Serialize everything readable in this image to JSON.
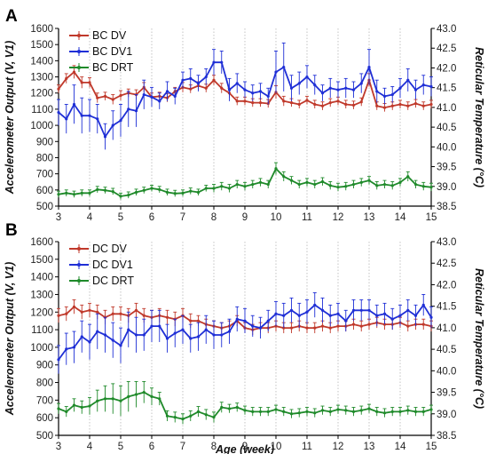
{
  "chart_data": [
    {
      "panel_label": "A",
      "type": "line",
      "xlabel": "",
      "ylabel": "Accelerometer Output (V, V1)",
      "y2label": "Reticular Temperature (°C)",
      "xlim": [
        3,
        15
      ],
      "ylim": [
        500,
        1600
      ],
      "y2lim": [
        38.5,
        43.0
      ],
      "xticks": [
        "3",
        "4",
        "5",
        "6",
        "7",
        "8",
        "9",
        "10",
        "11",
        "12",
        "13",
        "14",
        "15"
      ],
      "yticks": [
        "500",
        "600",
        "700",
        "800",
        "900",
        "1000",
        "1100",
        "1200",
        "1300",
        "1400",
        "1500",
        "1600"
      ],
      "y2ticks": [
        "38.5",
        "39.0",
        "39.5",
        "40.0",
        "40.5",
        "41.0",
        "41.5",
        "42.0",
        "42.5",
        "43.0"
      ],
      "grid": "vertical",
      "legend_position": "top-left",
      "series": [
        {
          "name": "BC DV",
          "axis": "left",
          "color": "#c0392b",
          "x": [
            3.0,
            3.25,
            3.5,
            3.75,
            4.0,
            4.25,
            4.5,
            4.75,
            5.0,
            5.25,
            5.5,
            5.75,
            6.0,
            6.25,
            6.5,
            6.75,
            7.0,
            7.25,
            7.5,
            7.75,
            8.0,
            8.25,
            8.5,
            8.75,
            9.0,
            9.25,
            9.5,
            9.75,
            10.0,
            10.25,
            10.5,
            10.75,
            11.0,
            11.25,
            11.5,
            11.75,
            12.0,
            12.25,
            12.5,
            12.75,
            13.0,
            13.25,
            13.5,
            13.75,
            14.0,
            14.25,
            14.5,
            14.75,
            15.0
          ],
          "y": [
            1225,
            1290,
            1330,
            1265,
            1265,
            1170,
            1180,
            1160,
            1185,
            1200,
            1190,
            1235,
            1175,
            1180,
            1170,
            1210,
            1235,
            1225,
            1245,
            1230,
            1280,
            1230,
            1200,
            1150,
            1150,
            1140,
            1140,
            1135,
            1205,
            1150,
            1140,
            1130,
            1155,
            1130,
            1120,
            1140,
            1150,
            1130,
            1125,
            1145,
            1280,
            1120,
            1110,
            1120,
            1130,
            1120,
            1135,
            1120,
            1130
          ],
          "err": [
            25,
            30,
            40,
            35,
            30,
            30,
            25,
            30,
            30,
            25,
            30,
            30,
            25,
            25,
            25,
            25,
            30,
            25,
            25,
            25,
            30,
            30,
            30,
            25,
            25,
            25,
            25,
            25,
            40,
            30,
            25,
            25,
            25,
            25,
            25,
            25,
            25,
            25,
            25,
            25,
            40,
            25,
            25,
            25,
            25,
            25,
            25,
            25,
            25
          ]
        },
        {
          "name": "BC DV1",
          "axis": "left",
          "color": "#1f2fd6",
          "x": [
            3.0,
            3.25,
            3.5,
            3.75,
            4.0,
            4.25,
            4.5,
            4.75,
            5.0,
            5.25,
            5.5,
            5.75,
            6.0,
            6.25,
            6.5,
            6.75,
            7.0,
            7.25,
            7.5,
            7.75,
            8.0,
            8.25,
            8.5,
            8.75,
            9.0,
            9.25,
            9.5,
            9.75,
            10.0,
            10.25,
            10.5,
            10.75,
            11.0,
            11.25,
            11.5,
            11.75,
            12.0,
            12.25,
            12.5,
            12.75,
            13.0,
            13.25,
            13.5,
            13.75,
            14.0,
            14.25,
            14.5,
            14.75,
            15.0
          ],
          "y": [
            1080,
            1040,
            1130,
            1060,
            1060,
            1040,
            930,
            1000,
            1030,
            1100,
            1090,
            1190,
            1175,
            1150,
            1210,
            1180,
            1280,
            1290,
            1260,
            1300,
            1390,
            1390,
            1220,
            1260,
            1220,
            1200,
            1210,
            1180,
            1330,
            1360,
            1230,
            1260,
            1300,
            1250,
            1200,
            1230,
            1220,
            1230,
            1220,
            1260,
            1360,
            1210,
            1180,
            1190,
            1230,
            1280,
            1220,
            1250,
            1240
          ],
          "err": [
            80,
            90,
            120,
            110,
            100,
            90,
            80,
            90,
            100,
            110,
            100,
            90,
            60,
            50,
            60,
            50,
            50,
            60,
            50,
            50,
            80,
            70,
            70,
            60,
            50,
            50,
            50,
            50,
            130,
            150,
            80,
            70,
            70,
            60,
            50,
            60,
            50,
            60,
            50,
            60,
            110,
            70,
            50,
            50,
            60,
            70,
            60,
            60,
            60
          ]
        },
        {
          "name": "BC DRT",
          "axis": "right",
          "color": "#1f8a2a",
          "x": [
            3.0,
            3.25,
            3.5,
            3.75,
            4.0,
            4.25,
            4.5,
            4.75,
            5.0,
            5.25,
            5.5,
            5.75,
            6.0,
            6.25,
            6.5,
            6.75,
            7.0,
            7.25,
            7.5,
            7.75,
            8.0,
            8.25,
            8.5,
            8.75,
            9.0,
            9.25,
            9.5,
            9.75,
            10.0,
            10.25,
            10.5,
            10.75,
            11.0,
            11.25,
            11.5,
            11.75,
            12.0,
            12.25,
            12.5,
            12.75,
            13.0,
            13.25,
            13.5,
            13.75,
            14.0,
            14.25,
            14.5,
            14.75,
            15.0
          ],
          "y": [
            38.8,
            38.83,
            38.8,
            38.83,
            38.83,
            38.92,
            38.9,
            38.87,
            38.75,
            38.78,
            38.85,
            38.9,
            38.95,
            38.92,
            38.85,
            38.82,
            38.83,
            38.88,
            38.85,
            38.95,
            38.95,
            39.0,
            38.95,
            39.05,
            39.0,
            39.05,
            39.1,
            39.05,
            39.45,
            39.25,
            39.15,
            39.05,
            39.1,
            39.05,
            39.12,
            39.02,
            38.98,
            39.0,
            39.05,
            39.1,
            39.15,
            39.02,
            39.05,
            39.02,
            39.1,
            39.25,
            39.05,
            39.0,
            38.98
          ],
          "err": [
            0.08,
            0.08,
            0.08,
            0.08,
            0.08,
            0.08,
            0.08,
            0.08,
            0.08,
            0.08,
            0.08,
            0.08,
            0.08,
            0.08,
            0.08,
            0.08,
            0.08,
            0.08,
            0.08,
            0.08,
            0.1,
            0.1,
            0.1,
            0.1,
            0.1,
            0.1,
            0.1,
            0.1,
            0.15,
            0.12,
            0.1,
            0.1,
            0.1,
            0.1,
            0.1,
            0.1,
            0.1,
            0.1,
            0.1,
            0.1,
            0.1,
            0.1,
            0.1,
            0.1,
            0.1,
            0.12,
            0.1,
            0.1,
            0.1
          ]
        }
      ]
    },
    {
      "panel_label": "B",
      "type": "line",
      "xlabel": "Age (week)",
      "ylabel": "Accelerometer Output (V, V1)",
      "y2label": "Reticular Temperature (°C)",
      "xlim": [
        3,
        15
      ],
      "ylim": [
        500,
        1600
      ],
      "y2lim": [
        38.5,
        43.0
      ],
      "xticks": [
        "3",
        "4",
        "5",
        "6",
        "7",
        "8",
        "9",
        "10",
        "11",
        "12",
        "13",
        "14",
        "15"
      ],
      "yticks": [
        "500",
        "600",
        "700",
        "800",
        "900",
        "1000",
        "1100",
        "1200",
        "1300",
        "1400",
        "1500",
        "1600"
      ],
      "y2ticks": [
        "38.5",
        "39.0",
        "39.5",
        "40.0",
        "40.5",
        "41.0",
        "41.5",
        "42.0",
        "42.5",
        "43.0"
      ],
      "grid": "vertical",
      "legend_position": "top-left",
      "series": [
        {
          "name": "DC DV",
          "axis": "left",
          "color": "#c0392b",
          "x": [
            3.0,
            3.25,
            3.5,
            3.75,
            4.0,
            4.25,
            4.5,
            4.75,
            5.0,
            5.25,
            5.5,
            5.75,
            6.0,
            6.25,
            6.5,
            6.75,
            7.0,
            7.25,
            7.5,
            7.75,
            8.0,
            8.25,
            8.5,
            8.75,
            9.0,
            9.25,
            9.5,
            9.75,
            10.0,
            10.25,
            10.5,
            10.75,
            11.0,
            11.25,
            11.5,
            11.75,
            12.0,
            12.25,
            12.5,
            12.75,
            13.0,
            13.25,
            13.5,
            13.75,
            14.0,
            14.25,
            14.5,
            14.75,
            15.0
          ],
          "y": [
            1180,
            1190,
            1230,
            1200,
            1210,
            1200,
            1170,
            1190,
            1190,
            1180,
            1210,
            1180,
            1170,
            1180,
            1170,
            1160,
            1180,
            1150,
            1150,
            1130,
            1120,
            1110,
            1120,
            1150,
            1110,
            1100,
            1110,
            1110,
            1120,
            1110,
            1110,
            1120,
            1110,
            1110,
            1120,
            1110,
            1120,
            1120,
            1130,
            1120,
            1130,
            1140,
            1130,
            1130,
            1140,
            1120,
            1130,
            1130,
            1120
          ],
          "err": [
            40,
            40,
            40,
            40,
            40,
            40,
            40,
            40,
            40,
            40,
            40,
            40,
            40,
            40,
            40,
            40,
            40,
            40,
            30,
            30,
            30,
            30,
            30,
            30,
            30,
            30,
            30,
            30,
            30,
            30,
            30,
            30,
            30,
            30,
            30,
            30,
            30,
            30,
            30,
            30,
            30,
            30,
            30,
            30,
            30,
            30,
            30,
            30,
            30
          ]
        },
        {
          "name": "DC DV1",
          "axis": "left",
          "color": "#1f2fd6",
          "x": [
            3.0,
            3.25,
            3.5,
            3.75,
            4.0,
            4.25,
            4.5,
            4.75,
            5.0,
            5.25,
            5.5,
            5.75,
            6.0,
            6.25,
            6.5,
            6.75,
            7.0,
            7.25,
            7.5,
            7.75,
            8.0,
            8.25,
            8.5,
            8.75,
            9.0,
            9.25,
            9.5,
            9.75,
            10.0,
            10.25,
            10.5,
            10.75,
            11.0,
            11.25,
            11.5,
            11.75,
            12.0,
            12.25,
            12.5,
            12.75,
            13.0,
            13.25,
            13.5,
            13.75,
            14.0,
            14.25,
            14.5,
            14.75,
            15.0
          ],
          "y": [
            930,
            990,
            1000,
            1060,
            1030,
            1090,
            1070,
            1040,
            1010,
            1100,
            1070,
            1070,
            1120,
            1120,
            1050,
            1080,
            1100,
            1050,
            1060,
            1100,
            1070,
            1070,
            1090,
            1160,
            1150,
            1120,
            1110,
            1150,
            1190,
            1180,
            1210,
            1180,
            1200,
            1240,
            1210,
            1180,
            1190,
            1150,
            1210,
            1210,
            1210,
            1180,
            1190,
            1160,
            1180,
            1210,
            1180,
            1240,
            1170
          ],
          "err": [
            80,
            90,
            90,
            90,
            100,
            100,
            100,
            100,
            100,
            100,
            100,
            90,
            90,
            90,
            80,
            80,
            80,
            80,
            80,
            80,
            80,
            70,
            70,
            70,
            70,
            60,
            60,
            60,
            70,
            70,
            70,
            70,
            70,
            70,
            70,
            60,
            60,
            60,
            60,
            60,
            60,
            60,
            60,
            60,
            60,
            60,
            60,
            60,
            60
          ]
        },
        {
          "name": "DC DRT",
          "axis": "right",
          "color": "#1f8a2a",
          "x": [
            3.0,
            3.25,
            3.5,
            3.75,
            4.0,
            4.25,
            4.5,
            4.75,
            5.0,
            5.25,
            5.5,
            5.75,
            6.0,
            6.25,
            6.5,
            6.75,
            7.0,
            7.25,
            7.5,
            7.75,
            8.0,
            8.25,
            8.5,
            8.75,
            9.0,
            9.25,
            9.5,
            9.75,
            10.0,
            10.25,
            10.5,
            10.75,
            11.0,
            11.25,
            11.5,
            11.75,
            12.0,
            12.25,
            12.5,
            12.75,
            13.0,
            13.25,
            13.5,
            13.75,
            14.0,
            14.25,
            14.5,
            14.75,
            15.0
          ],
          "y": [
            39.12,
            39.05,
            39.2,
            39.15,
            39.18,
            39.3,
            39.35,
            39.35,
            39.3,
            39.4,
            39.45,
            39.5,
            39.4,
            39.35,
            38.95,
            38.92,
            38.88,
            38.95,
            39.05,
            38.98,
            38.92,
            39.15,
            39.12,
            39.15,
            39.08,
            39.05,
            39.05,
            39.05,
            39.1,
            39.05,
            39.0,
            39.02,
            39.05,
            39.02,
            39.08,
            39.05,
            39.1,
            39.08,
            39.05,
            39.08,
            39.12,
            39.05,
            39.02,
            39.05,
            39.05,
            39.08,
            39.05,
            39.05,
            39.1
          ],
          "err": [
            0.12,
            0.12,
            0.15,
            0.15,
            0.2,
            0.25,
            0.3,
            0.35,
            0.35,
            0.35,
            0.3,
            0.25,
            0.2,
            0.15,
            0.12,
            0.12,
            0.12,
            0.12,
            0.12,
            0.12,
            0.12,
            0.12,
            0.1,
            0.1,
            0.1,
            0.1,
            0.1,
            0.1,
            0.1,
            0.1,
            0.1,
            0.1,
            0.1,
            0.1,
            0.1,
            0.1,
            0.1,
            0.1,
            0.1,
            0.1,
            0.1,
            0.1,
            0.1,
            0.1,
            0.1,
            0.1,
            0.1,
            0.1,
            0.1
          ]
        }
      ]
    }
  ]
}
